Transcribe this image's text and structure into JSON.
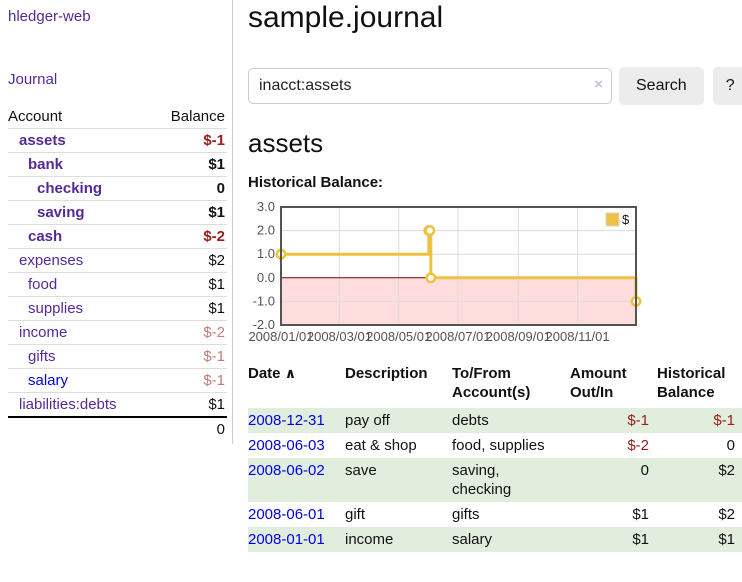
{
  "colors": {
    "purple_link": "#552a96",
    "blue_link": "#0000e6",
    "negative_strong": "#a01c1c",
    "negative_soft": "#c47c7c",
    "row_stripe_green": "#e1eedd",
    "series_gold": "#edc240"
  },
  "app": {
    "brand": "hledger-web",
    "nav_journal": "Journal"
  },
  "sidebar": {
    "header": {
      "account": "Account",
      "balance": "Balance"
    },
    "accounts": [
      {
        "name": "assets",
        "balance": "$-1"
      },
      {
        "name": "bank",
        "balance": "$1"
      },
      {
        "name": "checking",
        "balance": "0"
      },
      {
        "name": "saving",
        "balance": "$1"
      },
      {
        "name": "cash",
        "balance": "$-2"
      },
      {
        "name": "expenses",
        "balance": "$2"
      },
      {
        "name": "food",
        "balance": "$1"
      },
      {
        "name": "supplies",
        "balance": "$1"
      },
      {
        "name": "income",
        "balance": "$-2"
      },
      {
        "name": "gifts",
        "balance": "$-1"
      },
      {
        "name": "salary",
        "balance": "$-1"
      },
      {
        "name": "liabilities:debts",
        "balance": "$1"
      }
    ],
    "total": "0"
  },
  "header": {
    "title": "sample.journal"
  },
  "search": {
    "value": "inacct:assets",
    "clear_icon": "×",
    "button": "Search",
    "help_button": "?"
  },
  "main": {
    "account_title": "assets",
    "chart_label": "Historical Balance:"
  },
  "chart_data": {
    "type": "line",
    "title": "Historical Balance:",
    "steps": true,
    "series": [
      {
        "name": "$",
        "color": "#edc240",
        "points": [
          [
            "2008-01-01",
            1
          ],
          [
            "2008-06-01",
            2
          ],
          [
            "2008-06-02",
            2
          ],
          [
            "2008-06-03",
            0
          ],
          [
            "2008-12-31",
            -1
          ]
        ]
      }
    ],
    "x_range": [
      "2008-01-01",
      "2008-12-31"
    ],
    "ylim": [
      -2,
      3
    ],
    "y_ticks": [
      {
        "v": 3,
        "label": "3.0"
      },
      {
        "v": 2,
        "label": "2.0"
      },
      {
        "v": 1,
        "label": "1.0"
      },
      {
        "v": 0,
        "label": "0.0"
      },
      {
        "v": -1,
        "label": "-1.0"
      },
      {
        "v": -2,
        "label": "-2.0"
      }
    ],
    "x_ticks": [
      {
        "date": "2008-01-01",
        "label": "2008/01/01"
      },
      {
        "date": "2008-03-01",
        "label": "2008/03/01"
      },
      {
        "date": "2008-05-01",
        "label": "2008/05/01"
      },
      {
        "date": "2008-07-01",
        "label": "2008/07/01"
      },
      {
        "date": "2008-09-01",
        "label": "2008/09/01"
      },
      {
        "date": "2008-11-01",
        "label": "2008/11/01"
      }
    ],
    "legend": {
      "position": "top-right",
      "label": "$"
    },
    "grid": true,
    "negative_region_color": "#ffdddd",
    "zero_line_color": "#8b0000"
  },
  "register": {
    "columns": {
      "date": "Date",
      "description": "Description",
      "accounts": "To/From Account(s)",
      "amount": "Amount Out/In",
      "balance": "Historical Balance"
    },
    "sort_indicator": "∧",
    "rows": [
      {
        "date": "2008-12-31",
        "description": "pay off",
        "accounts": "debts",
        "amount": "$-1",
        "balance": "$-1"
      },
      {
        "date": "2008-06-03",
        "description": "eat & shop",
        "accounts": "food, supplies",
        "amount": "$-2",
        "balance": "0"
      },
      {
        "date": "2008-06-02",
        "description": "save",
        "accounts": "saving, checking",
        "amount": "0",
        "balance": "$2"
      },
      {
        "date": "2008-06-01",
        "description": "gift",
        "accounts": "gifts",
        "amount": "$1",
        "balance": "$2"
      },
      {
        "date": "2008-01-01",
        "description": "income",
        "accounts": "salary",
        "amount": "$1",
        "balance": "$1"
      }
    ]
  }
}
